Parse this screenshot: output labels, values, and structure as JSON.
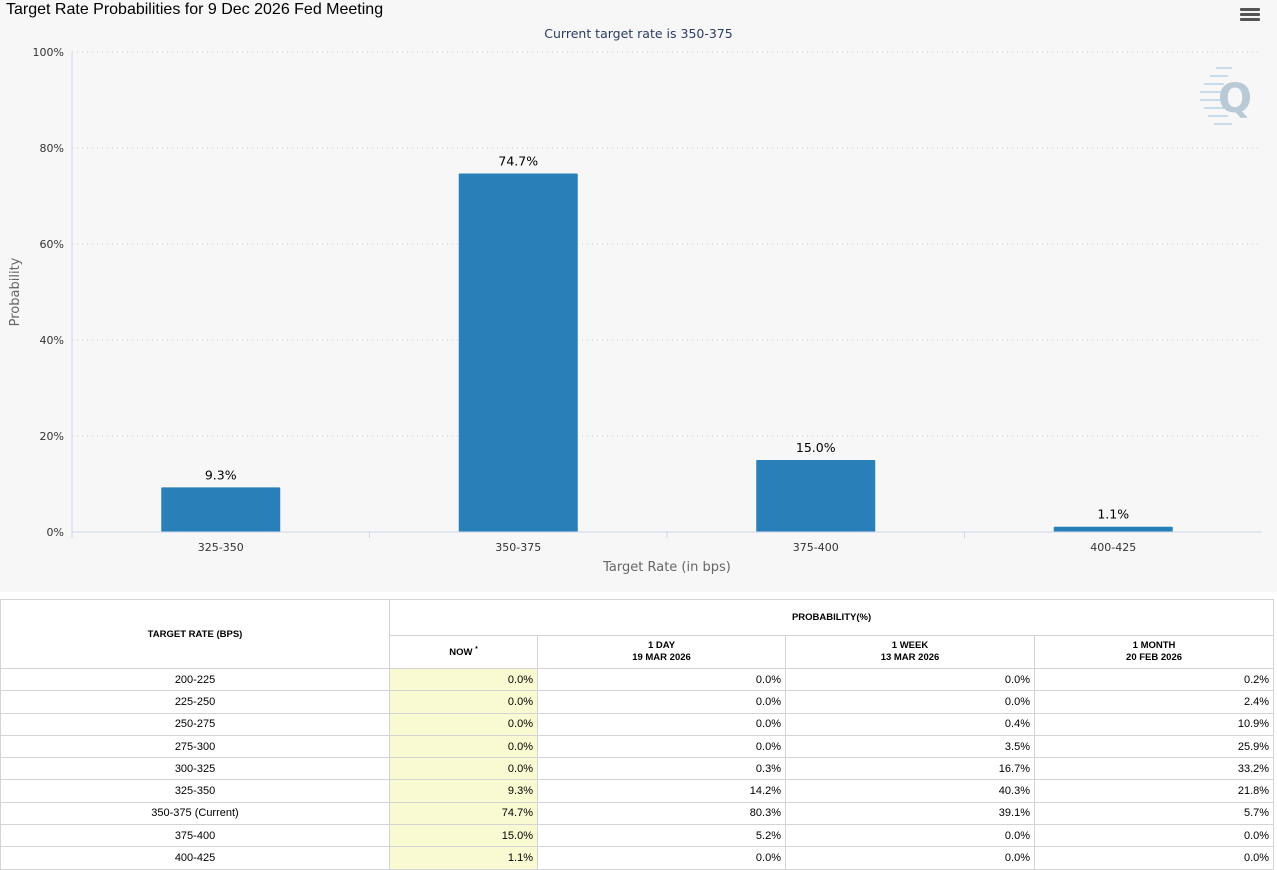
{
  "chart_data": {
    "type": "bar",
    "title": "Target Rate Probabilities for 9 Dec 2026 Fed Meeting",
    "subtitle": "Current target rate is 350-375",
    "xlabel": "Target Rate (in bps)",
    "ylabel": "Probability",
    "ylim": [
      0,
      100
    ],
    "y_ticks": [
      0,
      20,
      40,
      60,
      80,
      100
    ],
    "y_tick_suffix": "%",
    "grid": true,
    "categories": [
      "325-350",
      "350-375",
      "375-400",
      "400-425"
    ],
    "values": [
      9.3,
      74.7,
      15.0,
      1.1
    ],
    "data_labels": [
      "9.3%",
      "74.7%",
      "15.0%",
      "1.1%"
    ],
    "bar_color": "#2980b9"
  },
  "table": {
    "rate_header": "TARGET RATE (BPS)",
    "prob_header": "PROBABILITY(%)",
    "columns": [
      {
        "label": "NOW",
        "note": "*",
        "date": ""
      },
      {
        "label": "1 DAY",
        "date": "19 MAR 2026"
      },
      {
        "label": "1 WEEK",
        "date": "13 MAR 2026"
      },
      {
        "label": "1 MONTH",
        "date": "20 FEB 2026"
      }
    ],
    "rows": [
      {
        "rate": "200-225",
        "now": "0.0%",
        "day": "0.0%",
        "week": "0.0%",
        "month": "0.2%"
      },
      {
        "rate": "225-250",
        "now": "0.0%",
        "day": "0.0%",
        "week": "0.0%",
        "month": "2.4%"
      },
      {
        "rate": "250-275",
        "now": "0.0%",
        "day": "0.0%",
        "week": "0.4%",
        "month": "10.9%"
      },
      {
        "rate": "275-300",
        "now": "0.0%",
        "day": "0.0%",
        "week": "3.5%",
        "month": "25.9%"
      },
      {
        "rate": "300-325",
        "now": "0.0%",
        "day": "0.3%",
        "week": "16.7%",
        "month": "33.2%"
      },
      {
        "rate": "325-350",
        "now": "9.3%",
        "day": "14.2%",
        "week": "40.3%",
        "month": "21.8%"
      },
      {
        "rate": "350-375 (Current)",
        "now": "74.7%",
        "day": "80.3%",
        "week": "39.1%",
        "month": "5.7%"
      },
      {
        "rate": "375-400",
        "now": "15.0%",
        "day": "5.2%",
        "week": "0.0%",
        "month": "0.0%"
      },
      {
        "rate": "400-425",
        "now": "1.1%",
        "day": "0.0%",
        "week": "0.0%",
        "month": "0.0%"
      }
    ]
  }
}
